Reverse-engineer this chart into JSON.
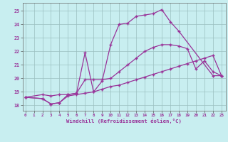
{
  "bg_color": "#c8eef0",
  "line_color": "#993399",
  "xlabel": "Windchill (Refroidissement éolien,°C)",
  "yticks": [
    18,
    19,
    20,
    21,
    22,
    23,
    24,
    25
  ],
  "xticks": [
    0,
    1,
    2,
    3,
    4,
    5,
    6,
    7,
    8,
    9,
    10,
    11,
    12,
    13,
    14,
    15,
    16,
    17,
    18,
    19,
    20,
    21,
    22,
    23
  ],
  "ylim": [
    17.6,
    25.6
  ],
  "xlim": [
    -0.3,
    23.5
  ],
  "line1_x": [
    0,
    2,
    3,
    4,
    5,
    6,
    7,
    8,
    9,
    10,
    11,
    12,
    13,
    14,
    15,
    16,
    17,
    18,
    22,
    23
  ],
  "line1_y": [
    18.6,
    18.5,
    18.1,
    18.2,
    18.8,
    18.9,
    21.9,
    19.0,
    19.8,
    22.5,
    24.0,
    24.1,
    24.6,
    24.7,
    24.8,
    25.1,
    24.2,
    23.5,
    20.2,
    20.2
  ],
  "line2_x": [
    0,
    2,
    3,
    4,
    5,
    6,
    7,
    8,
    9,
    10,
    11,
    12,
    13,
    14,
    15,
    16,
    17,
    18,
    19,
    20,
    21,
    22,
    23
  ],
  "line2_y": [
    18.6,
    18.8,
    18.7,
    18.8,
    18.8,
    18.9,
    19.9,
    19.9,
    19.9,
    20.0,
    20.5,
    21.0,
    21.5,
    22.0,
    22.3,
    22.5,
    22.5,
    22.4,
    22.2,
    20.7,
    21.3,
    20.5,
    20.2
  ],
  "line3_x": [
    0,
    2,
    3,
    4,
    5,
    6,
    7,
    8,
    9,
    10,
    11,
    12,
    13,
    14,
    15,
    16,
    17,
    18,
    19,
    20,
    21,
    22,
    23
  ],
  "line3_y": [
    18.6,
    18.5,
    18.1,
    18.2,
    18.7,
    18.8,
    18.9,
    19.0,
    19.2,
    19.4,
    19.5,
    19.7,
    19.9,
    20.1,
    20.3,
    20.5,
    20.7,
    20.9,
    21.1,
    21.3,
    21.5,
    21.7,
    20.2
  ]
}
